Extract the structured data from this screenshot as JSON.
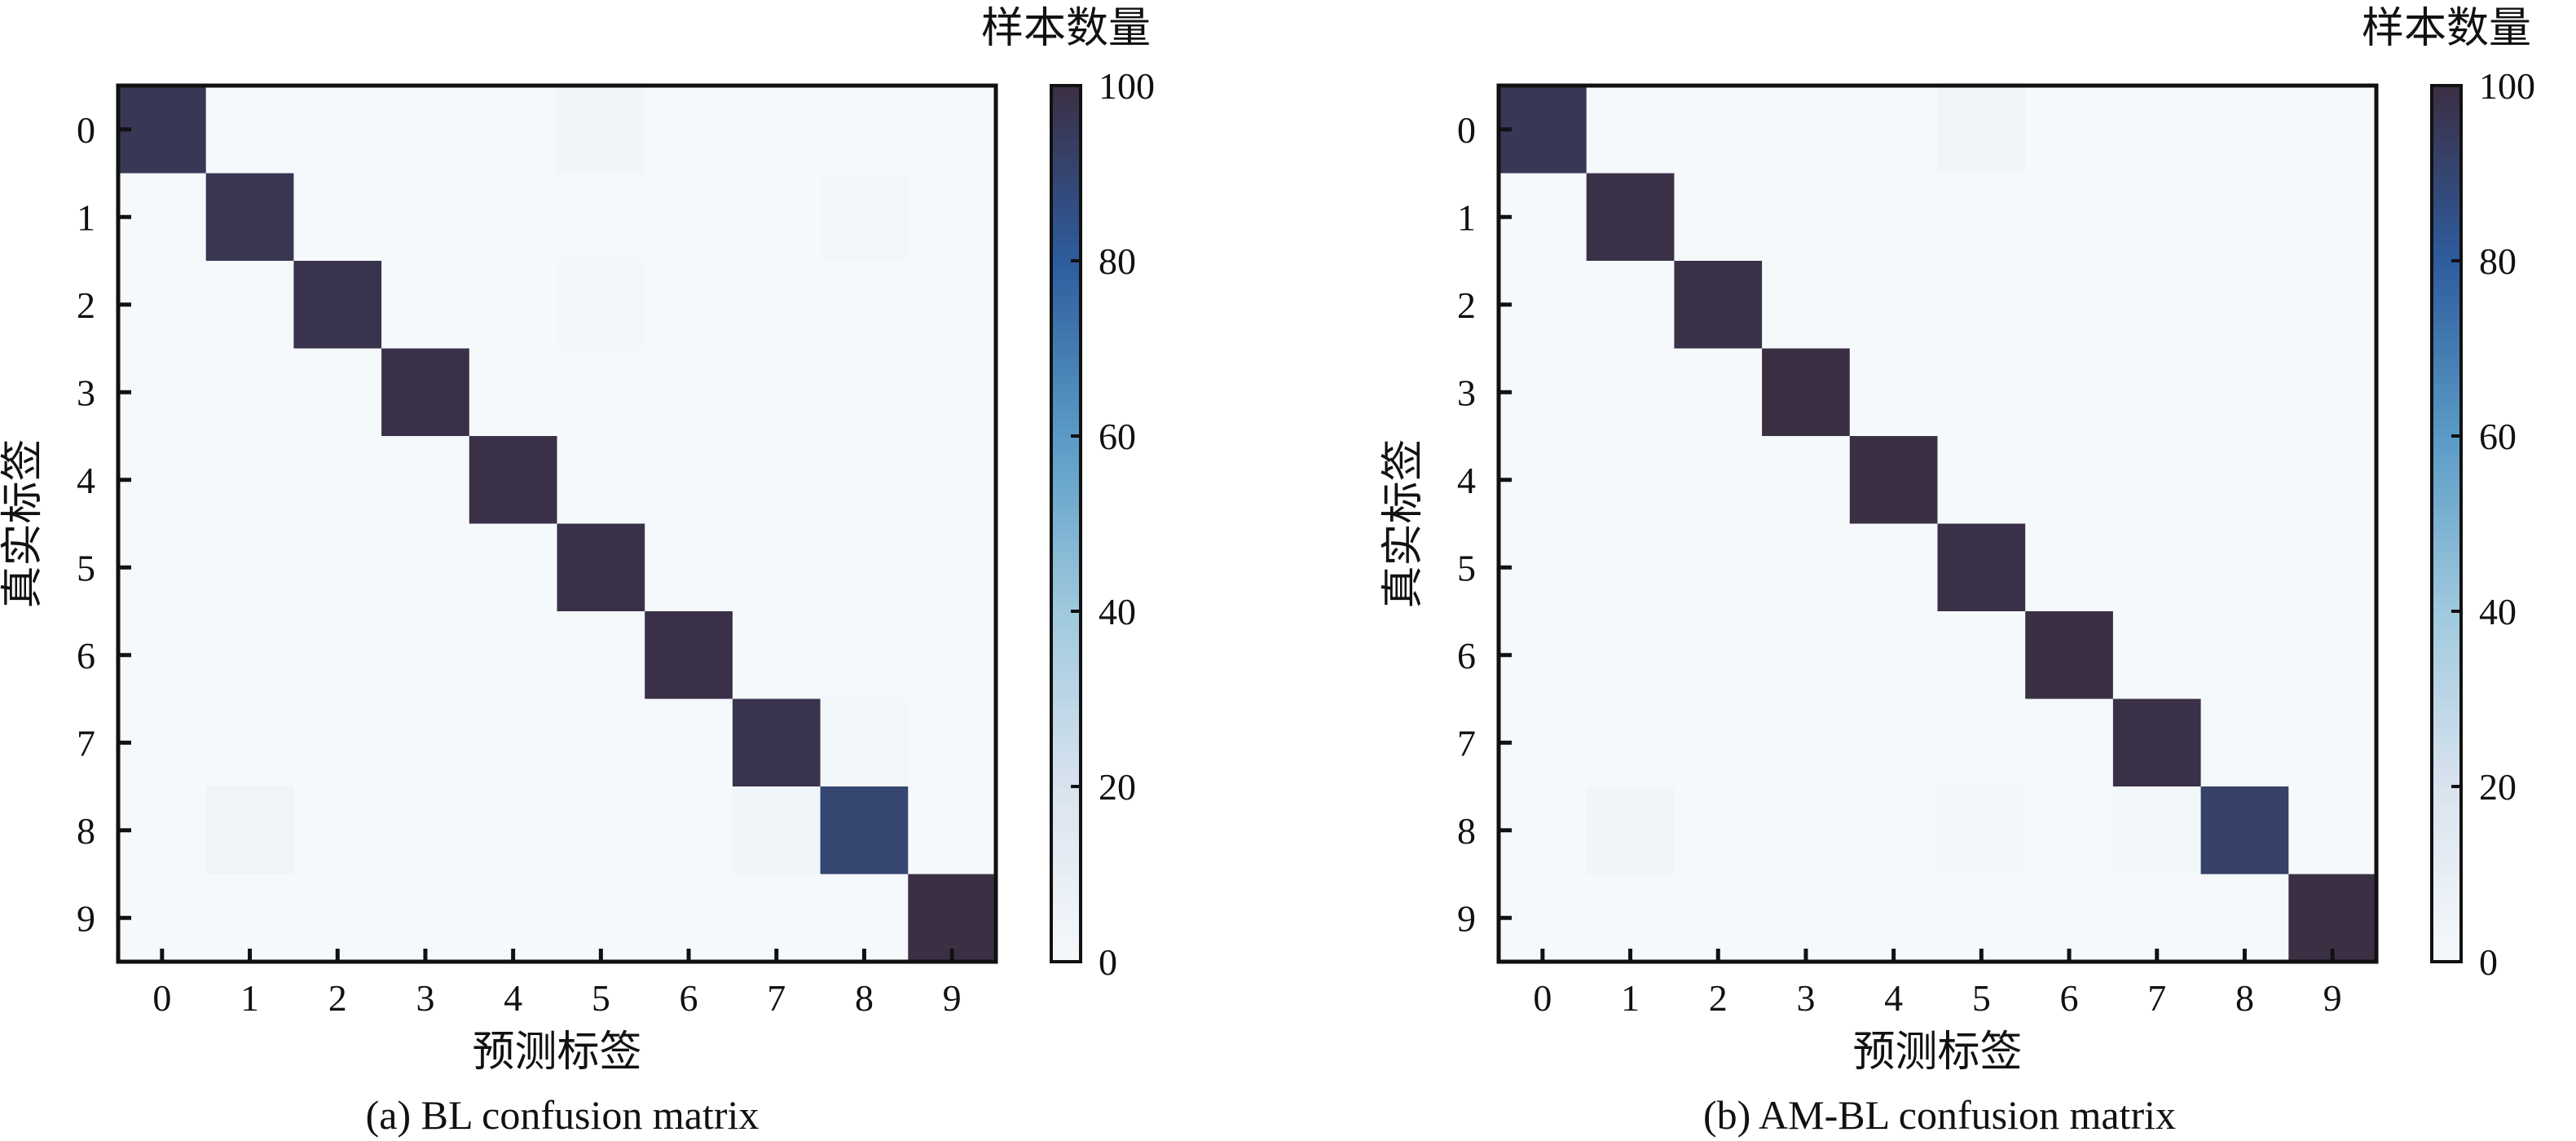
{
  "chart_data": [
    {
      "type": "heatmap",
      "title": "(a) BL confusion matrix",
      "xlabel": "预测标签",
      "ylabel": "真实标签",
      "colorbar_label": "样本数量",
      "colorbar_ticks": [
        "0",
        "20",
        "40",
        "60",
        "80",
        "100"
      ],
      "vlim": [
        0,
        100
      ],
      "x_categories": [
        "0",
        "1",
        "2",
        "3",
        "4",
        "5",
        "6",
        "7",
        "8",
        "9"
      ],
      "y_categories": [
        "0",
        "1",
        "2",
        "3",
        "4",
        "5",
        "6",
        "7",
        "8",
        "9"
      ],
      "values": [
        [
          96,
          0,
          0,
          0,
          0,
          4,
          0,
          0,
          0,
          0
        ],
        [
          0,
          97,
          0,
          0,
          0,
          1,
          0,
          0,
          2,
          0
        ],
        [
          0,
          0,
          98,
          0,
          0,
          2,
          0,
          0,
          0,
          0
        ],
        [
          0,
          0,
          0,
          99,
          0,
          1,
          0,
          0,
          0,
          0
        ],
        [
          0,
          0,
          0,
          0,
          99,
          1,
          0,
          0,
          0,
          0
        ],
        [
          1,
          0,
          0,
          0,
          0,
          99,
          0,
          0,
          0,
          0
        ],
        [
          0,
          0,
          0,
          0,
          0,
          1,
          99,
          0,
          0,
          0
        ],
        [
          0,
          0,
          0,
          0,
          0,
          0,
          0,
          98,
          2,
          0
        ],
        [
          0,
          5,
          0,
          0,
          0,
          1,
          0,
          4,
          90,
          0
        ],
        [
          0,
          0,
          0,
          0,
          0,
          0,
          0,
          0,
          0,
          100
        ]
      ]
    },
    {
      "type": "heatmap",
      "title": "(b) AM-BL confusion matrix",
      "xlabel": "预测标签",
      "ylabel": "真实标签",
      "colorbar_label": "样本数量",
      "colorbar_ticks": [
        "0",
        "20",
        "40",
        "60",
        "80",
        "100"
      ],
      "vlim": [
        0,
        100
      ],
      "x_categories": [
        "0",
        "1",
        "2",
        "3",
        "4",
        "5",
        "6",
        "7",
        "8",
        "9"
      ],
      "y_categories": [
        "0",
        "1",
        "2",
        "3",
        "4",
        "5",
        "6",
        "7",
        "8",
        "9"
      ],
      "values": [
        [
          96,
          0,
          0,
          0,
          0,
          4,
          0,
          0,
          0,
          0
        ],
        [
          0,
          99,
          0,
          0,
          0,
          0,
          0,
          0,
          1,
          0
        ],
        [
          0,
          0,
          99,
          0,
          0,
          1,
          0,
          0,
          0,
          0
        ],
        [
          0,
          0,
          0,
          100,
          0,
          0,
          0,
          0,
          0,
          0
        ],
        [
          0,
          0,
          0,
          0,
          100,
          0,
          0,
          0,
          0,
          0
        ],
        [
          0,
          0,
          0,
          1,
          0,
          99,
          0,
          0,
          0,
          0
        ],
        [
          0,
          0,
          0,
          0,
          0,
          0,
          100,
          0,
          0,
          0
        ],
        [
          0,
          0,
          0,
          0,
          0,
          0,
          0,
          99,
          1,
          0
        ],
        [
          0,
          4,
          0,
          0,
          0,
          2,
          0,
          2,
          92,
          0
        ],
        [
          0,
          0,
          0,
          0,
          0,
          0,
          0,
          0,
          0,
          100
        ]
      ]
    }
  ],
  "colormap": [
    "#f5f9fb",
    "#d9e3ef",
    "#9fc9de",
    "#5a9bc6",
    "#2e5c9e",
    "#3b2f44"
  ]
}
